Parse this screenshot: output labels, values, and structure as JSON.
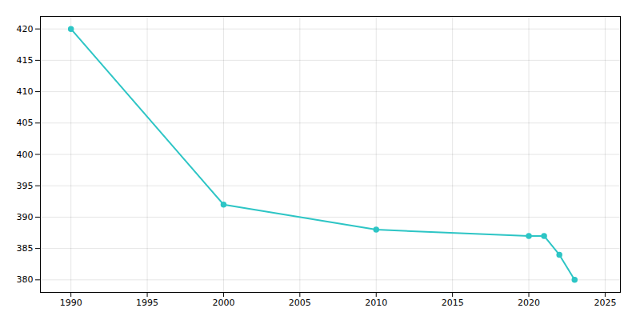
{
  "chart_data": {
    "type": "line",
    "x": [
      1990,
      2000,
      2010,
      2020,
      2021,
      2022,
      2023
    ],
    "values": [
      420,
      392,
      388,
      387,
      387,
      384,
      380
    ],
    "color": "#2DC5C5",
    "marker": "circle",
    "xlim": [
      1988,
      2026
    ],
    "ylim": [
      378,
      422
    ],
    "xticks": [
      1990,
      1995,
      2000,
      2005,
      2010,
      2015,
      2020,
      2025
    ],
    "yticks": [
      380,
      385,
      390,
      395,
      400,
      405,
      410,
      415,
      420
    ],
    "grid": true
  }
}
